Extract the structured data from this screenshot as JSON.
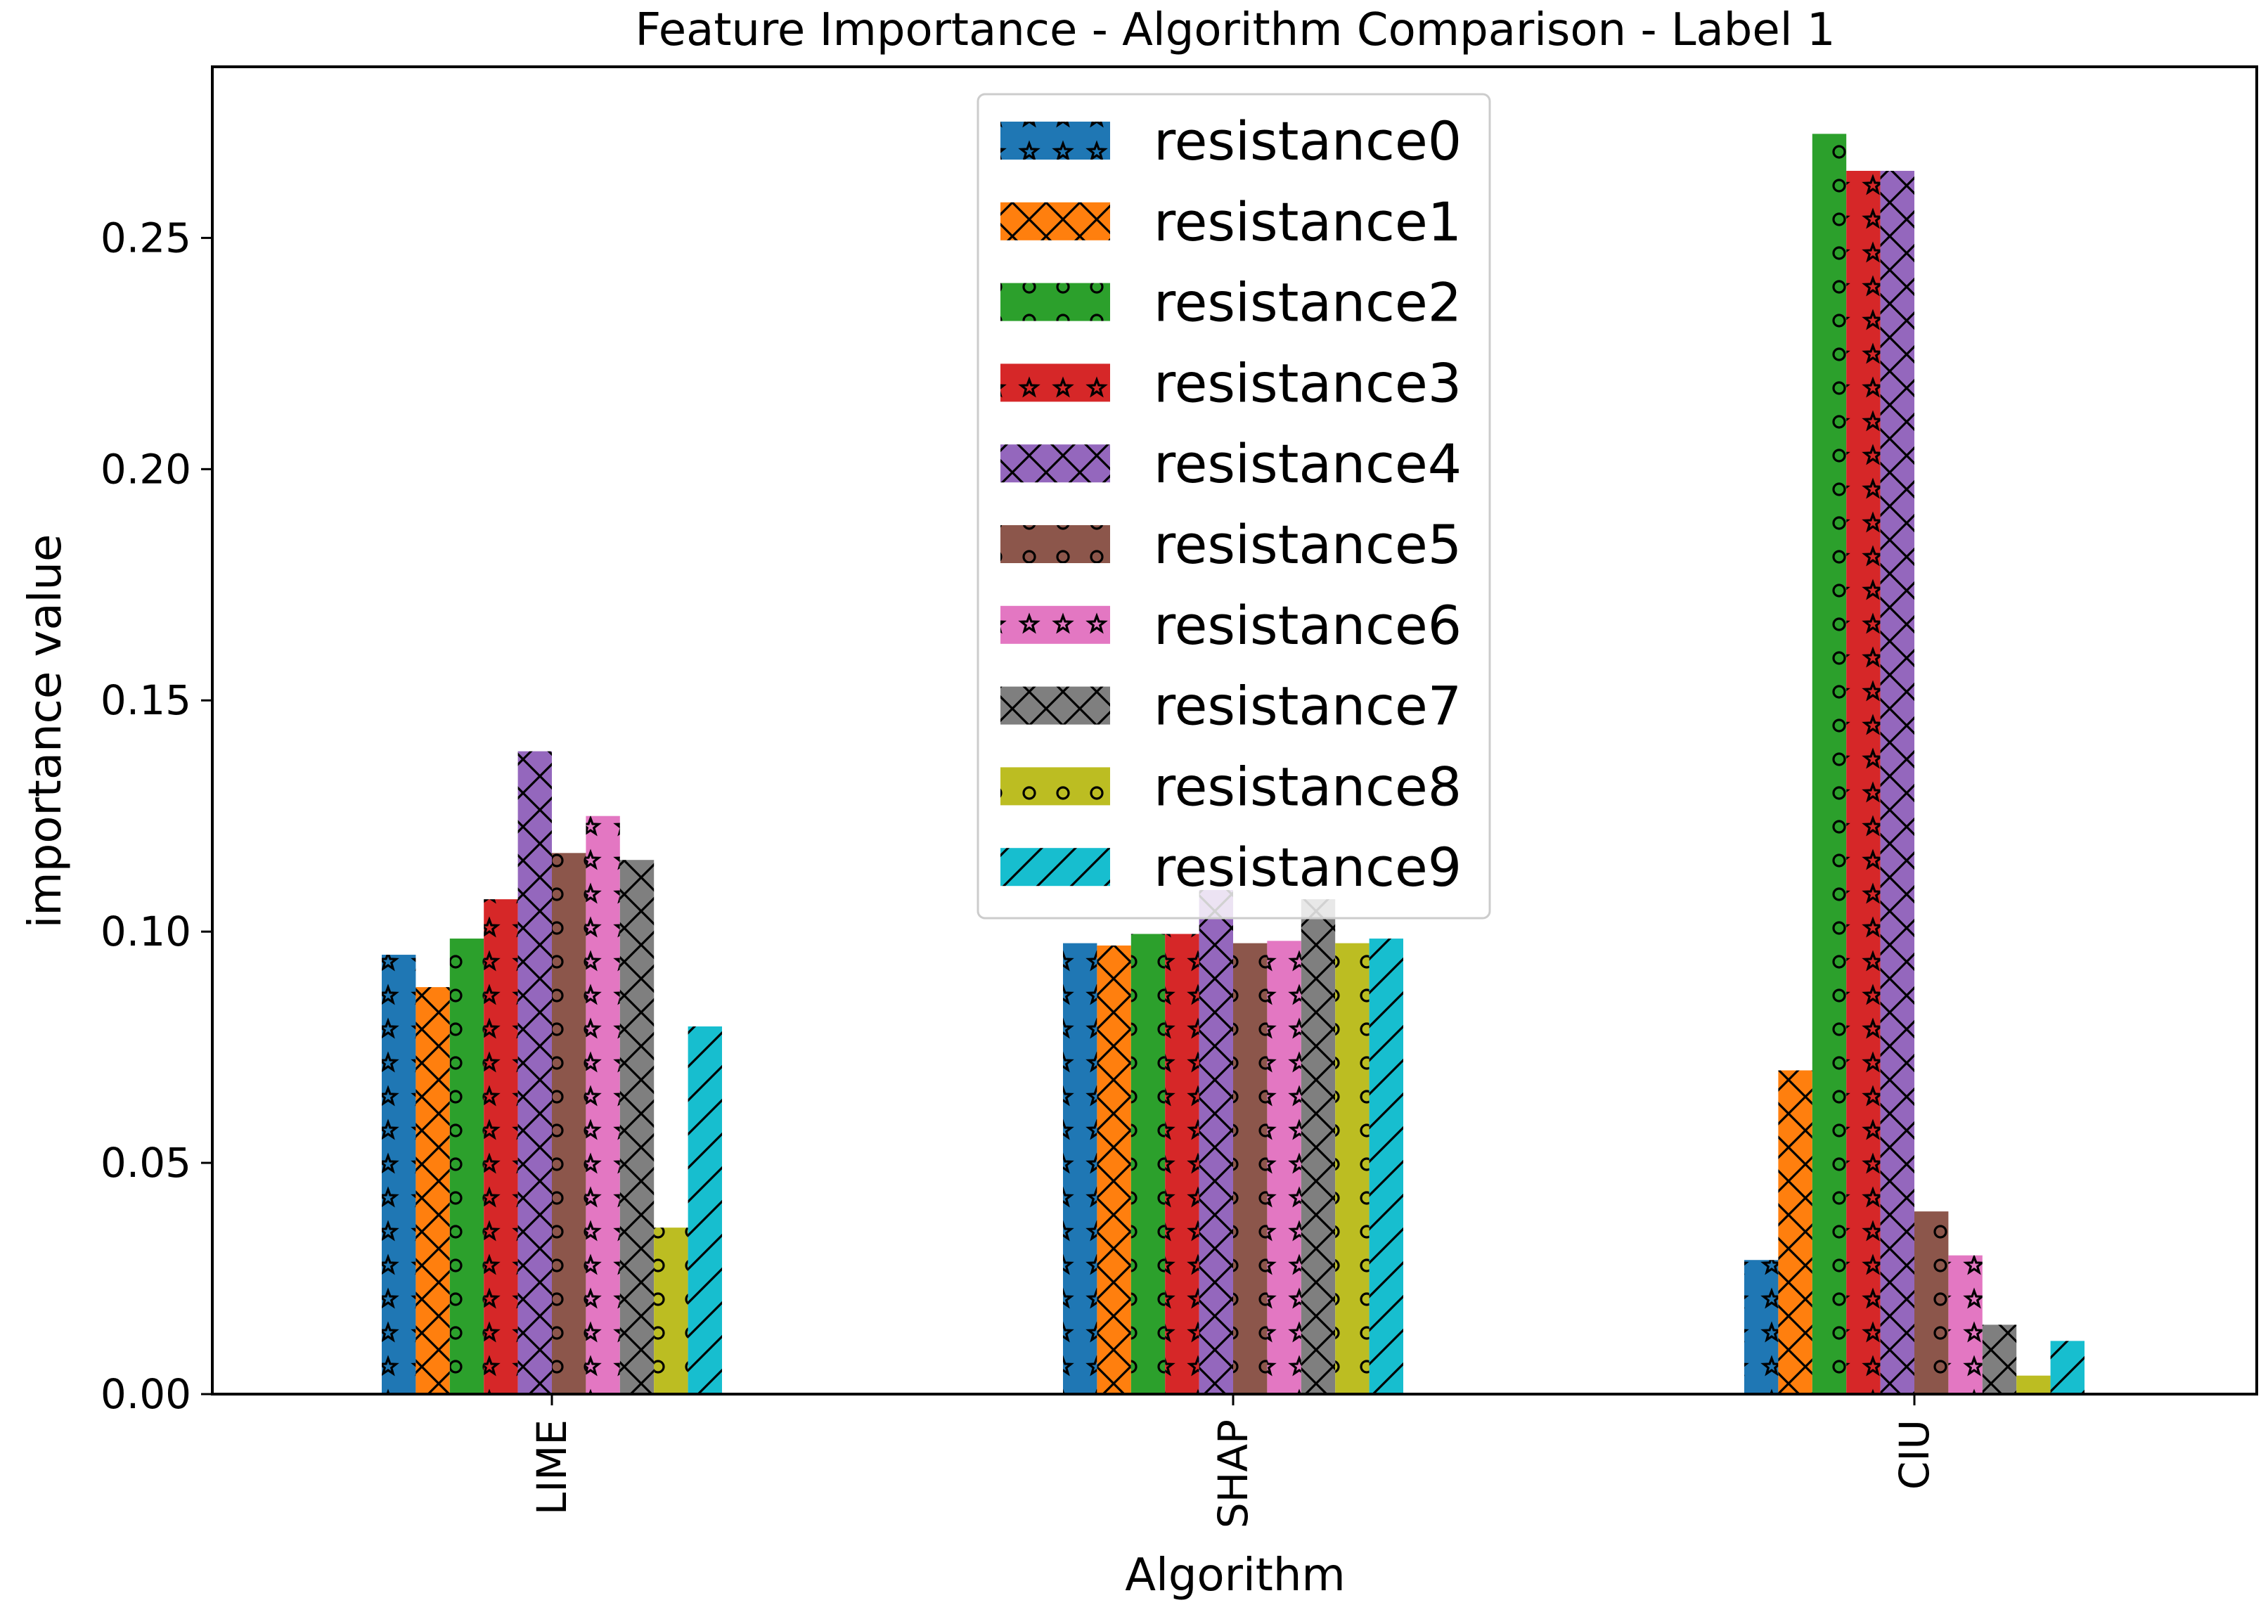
{
  "chart_data": {
    "type": "bar",
    "title": "Feature Importance - Algorithm Comparison - Label 1",
    "xlabel": "Algorithm",
    "ylabel": "importance value",
    "categories": [
      "LIME",
      "SHAP",
      "CIU"
    ],
    "ylim": [
      0,
      0.287
    ],
    "yticks": [
      0.0,
      0.05,
      0.1,
      0.15,
      0.2,
      0.25
    ],
    "ytick_labels": [
      "0.00",
      "0.05",
      "0.10",
      "0.15",
      "0.20",
      "0.25"
    ],
    "grid": false,
    "legend_position": "top-center",
    "series": [
      {
        "name": "resistance0",
        "color": "#1f77b4",
        "hatch": "star",
        "values": [
          0.095,
          0.0975,
          0.029
        ]
      },
      {
        "name": "resistance1",
        "color": "#ff7f0e",
        "hatch": "cross",
        "values": [
          0.088,
          0.097,
          0.07
        ]
      },
      {
        "name": "resistance2",
        "color": "#2ca02c",
        "hatch": "circle",
        "values": [
          0.0985,
          0.0995,
          0.2725
        ]
      },
      {
        "name": "resistance3",
        "color": "#d62728",
        "hatch": "star",
        "values": [
          0.107,
          0.0995,
          0.2645
        ]
      },
      {
        "name": "resistance4",
        "color": "#9467bd",
        "hatch": "cross",
        "values": [
          0.139,
          0.109,
          0.2645
        ]
      },
      {
        "name": "resistance5",
        "color": "#8c564b",
        "hatch": "circle",
        "values": [
          0.117,
          0.0975,
          0.0395
        ]
      },
      {
        "name": "resistance6",
        "color": "#e377c2",
        "hatch": "star",
        "values": [
          0.125,
          0.098,
          0.03
        ]
      },
      {
        "name": "resistance7",
        "color": "#7f7f7f",
        "hatch": "cross",
        "values": [
          0.1155,
          0.107,
          0.015
        ]
      },
      {
        "name": "resistance8",
        "color": "#bcbd22",
        "hatch": "circle",
        "values": [
          0.036,
          0.0975,
          0.004
        ]
      },
      {
        "name": "resistance9",
        "color": "#17becf",
        "hatch": "slash",
        "values": [
          0.0795,
          0.0985,
          0.0115
        ]
      }
    ]
  }
}
